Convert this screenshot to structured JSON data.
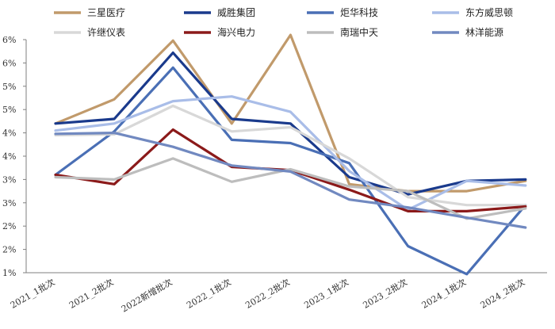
{
  "chart_data": {
    "type": "line",
    "title": "",
    "xlabel": "",
    "ylabel": "",
    "categories": [
      "2021_1批次",
      "2021_2批次",
      "2022新增批次",
      "2022_1批次",
      "2022_2批次",
      "2023_1批次",
      "2023_2批次",
      "2024_1批次",
      "2024_2批次"
    ],
    "y_tick_labels": [
      "1%",
      "2%",
      "2%",
      "3%",
      "3%",
      "4%",
      "4%",
      "5%",
      "5%",
      "6%",
      "6%"
    ],
    "ylim": [
      1.0,
      6.0
    ],
    "grid": false,
    "legend_position": "top",
    "series": [
      {
        "name": "三星医疗",
        "color": "#c19a6b",
        "values": [
          4.2,
          4.72,
          5.98,
          4.2,
          6.1,
          2.9,
          2.75,
          2.75,
          2.97
        ]
      },
      {
        "name": "威胜集团",
        "color": "#1a3a8c",
        "values": [
          4.2,
          4.3,
          5.72,
          4.3,
          4.2,
          3.05,
          2.68,
          2.97,
          3.0
        ]
      },
      {
        "name": "炬华科技",
        "color": "#4a6fb5",
        "values": [
          3.1,
          4.03,
          5.4,
          3.85,
          3.78,
          3.35,
          1.57,
          0.97,
          2.45
        ]
      },
      {
        "name": "东方威思顿",
        "color": "#a9bde8",
        "values": [
          4.05,
          4.2,
          4.68,
          4.78,
          4.45,
          3.18,
          2.35,
          2.97,
          2.87
        ]
      },
      {
        "name": "许继仪表",
        "color": "#d8d8d8",
        "values": [
          3.95,
          3.97,
          4.58,
          4.03,
          4.12,
          3.45,
          2.62,
          2.45,
          2.45
        ]
      },
      {
        "name": "海兴电力",
        "color": "#8b1a1a",
        "values": [
          3.1,
          2.9,
          4.07,
          3.27,
          3.2,
          2.78,
          2.32,
          2.32,
          2.42
        ]
      },
      {
        "name": "南瑞中天",
        "color": "#bdbdbd",
        "values": [
          3.05,
          3.0,
          3.45,
          2.95,
          3.22,
          2.85,
          2.75,
          2.16,
          2.38
        ]
      },
      {
        "name": "林洋能源",
        "color": "#7189c0",
        "values": [
          3.98,
          4.0,
          3.7,
          3.3,
          3.17,
          2.57,
          2.4,
          2.18,
          1.97
        ]
      }
    ]
  }
}
